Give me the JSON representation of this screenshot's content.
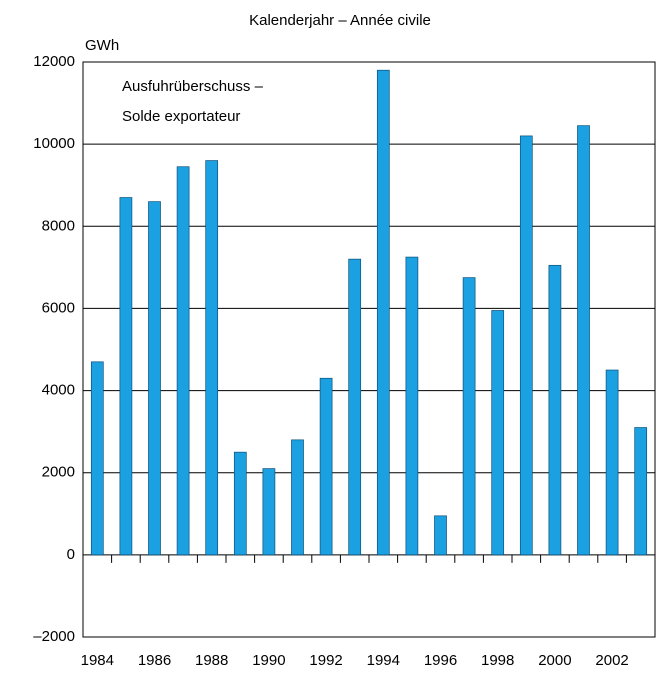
{
  "chart_data": {
    "type": "bar",
    "title": "Kalenderjahr – Année civile",
    "y_unit": "GWh",
    "annotation": [
      "Ausfuhrüberschuss –",
      "Solde exportateur"
    ],
    "categories": [
      "1984",
      null,
      "1986",
      null,
      "1988",
      null,
      "1990",
      null,
      "1992",
      null,
      "1994",
      null,
      "1996",
      null,
      "1998",
      null,
      "2000",
      null,
      "2002",
      null
    ],
    "values": [
      4700,
      8700,
      8600,
      9450,
      9600,
      2500,
      2100,
      2800,
      4300,
      7200,
      11800,
      7250,
      950,
      6750,
      5950,
      10200,
      7050,
      10450,
      4500,
      3100
    ],
    "color": "#1ba1e2",
    "ylim": [
      -2000,
      12000
    ],
    "yticks": [
      {
        "value": -2000,
        "label": "–2000"
      },
      0,
      2000,
      4000,
      6000,
      8000,
      10000,
      12000
    ],
    "grid": true
  }
}
